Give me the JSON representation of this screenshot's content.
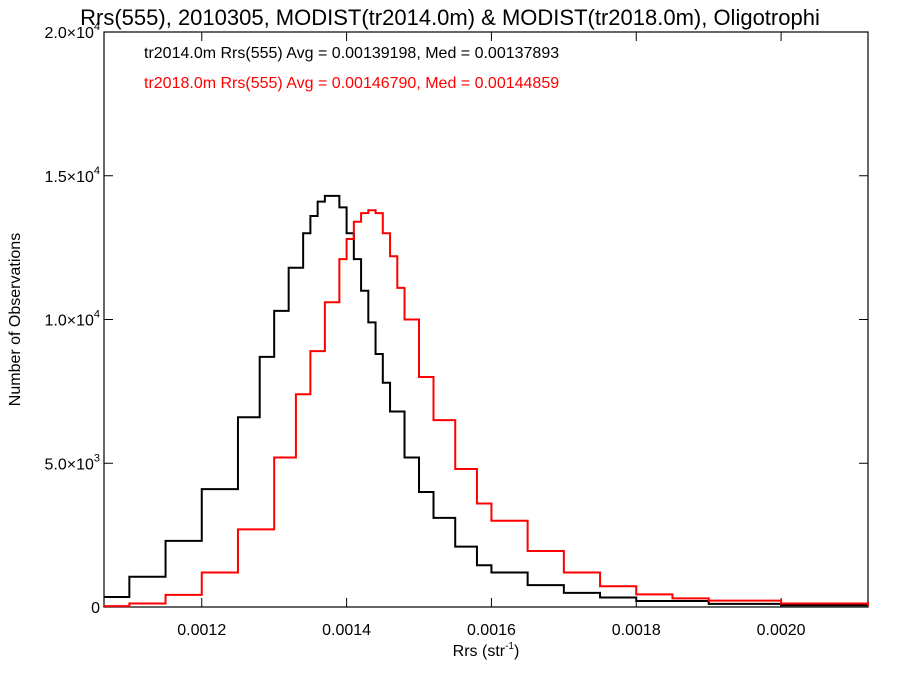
{
  "chart_data": {
    "type": "line",
    "title": "Rrs(555), 2010305, MODIST(tr2014.0m) & MODIST(tr2018.0m), Oligotrophi",
    "xlabel": "Rrs (str",
    "xlabel_sup": "-1",
    "xlabel_close": ")",
    "ylabel": "Number of Observations",
    "xlim": [
      0.001065,
      0.00212
    ],
    "ylim": [
      0,
      20000
    ],
    "x_ticks": [
      {
        "value": 0.0012,
        "label": "0.0012"
      },
      {
        "value": 0.0014,
        "label": "0.0014"
      },
      {
        "value": 0.0016,
        "label": "0.0016"
      },
      {
        "value": 0.0018,
        "label": "0.0018"
      },
      {
        "value": 0.002,
        "label": "0.0020"
      }
    ],
    "y_ticks": [
      {
        "value": 0,
        "mant": "0",
        "exp": ""
      },
      {
        "value": 5000,
        "mant": "5.0×10",
        "exp": "3"
      },
      {
        "value": 10000,
        "mant": "1.0×10",
        "exp": "4"
      },
      {
        "value": 15000,
        "mant": "1.5×10",
        "exp": "4"
      },
      {
        "value": 20000,
        "mant": "2.0×10",
        "exp": "4"
      }
    ],
    "grid": false,
    "legend_text": [
      {
        "text": "tr2014.0m Rrs(555) Avg = 0.00139198, Med = 0.00137893",
        "color": "#000000"
      },
      {
        "text": "tr2018.0m Rrs(555) Avg = 0.00146790, Med = 0.00144859",
        "color": "#ff0000"
      }
    ],
    "series": [
      {
        "color": "#000000",
        "x": [
          0.001065,
          0.0011,
          0.00115,
          0.0012,
          0.00125,
          0.00128,
          0.0013,
          0.00132,
          0.00134,
          0.00135,
          0.00136,
          0.00137,
          0.00138,
          0.00139,
          0.0014,
          0.00141,
          0.00142,
          0.00143,
          0.00144,
          0.00145,
          0.00146,
          0.00148,
          0.0015,
          0.00152,
          0.00155,
          0.00158,
          0.0016,
          0.00165,
          0.0017,
          0.00175,
          0.0018,
          0.0019,
          0.002,
          0.00212
        ],
        "values": [
          350,
          1050,
          2300,
          4100,
          6600,
          8700,
          10300,
          11800,
          13000,
          13600,
          14100,
          14300,
          14300,
          13900,
          13000,
          12100,
          11000,
          9900,
          8800,
          7800,
          6800,
          5200,
          4000,
          3100,
          2100,
          1450,
          1200,
          760,
          490,
          330,
          210,
          110,
          60,
          30
        ]
      },
      {
        "color": "#ff0000",
        "x": [
          0.001065,
          0.0011,
          0.00115,
          0.0012,
          0.00125,
          0.0013,
          0.00133,
          0.00135,
          0.00137,
          0.00139,
          0.0014,
          0.00141,
          0.00142,
          0.00143,
          0.00144,
          0.00145,
          0.00146,
          0.00147,
          0.00148,
          0.0015,
          0.00152,
          0.00155,
          0.00158,
          0.0016,
          0.00165,
          0.0017,
          0.00175,
          0.0018,
          0.00185,
          0.0019,
          0.002,
          0.00212
        ],
        "values": [
          30,
          120,
          420,
          1200,
          2700,
          5200,
          7400,
          8900,
          10600,
          12100,
          12800,
          13400,
          13700,
          13800,
          13700,
          13000,
          12200,
          11100,
          10000,
          8000,
          6500,
          4800,
          3600,
          3000,
          1950,
          1200,
          720,
          440,
          300,
          220,
          120,
          40
        ]
      }
    ]
  }
}
